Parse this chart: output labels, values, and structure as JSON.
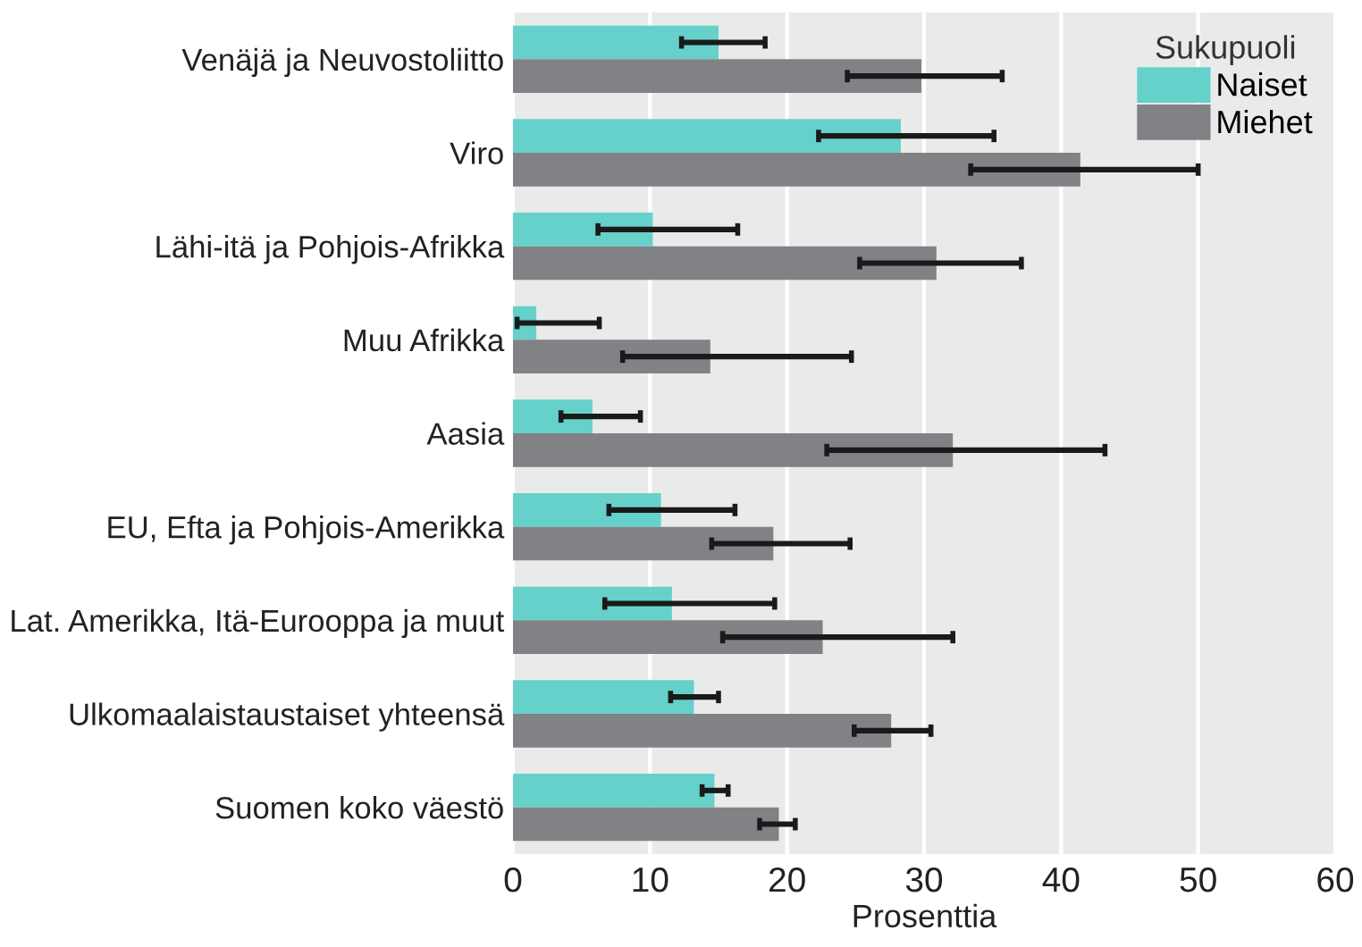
{
  "chart_data": {
    "type": "bar",
    "orientation": "horizontal",
    "xlabel": "Prosenttia",
    "legend_title": "Sukupuoli",
    "legend": "top right",
    "grid": "x",
    "categories": [
      "Venäjä ja Neuvostoliitto",
      "Viro",
      "Lähi-itä ja Pohjois-Afrikka",
      "Muu Afrikka",
      "Aasia",
      "EU, Efta ja Pohjois-Amerikka",
      "Lat. Amerikka, Itä-Eurooppa ja muut",
      "Ulkomaalaistaustaiset yhteensä",
      "Suomen koko väestö"
    ],
    "xlim": [
      0,
      60
    ],
    "xticks": [
      0,
      10,
      20,
      30,
      40,
      50,
      60
    ],
    "series": [
      {
        "name": "Naiset",
        "color": "#66d1cb",
        "values": [
          15.0,
          28.3,
          10.2,
          1.7,
          5.8,
          10.8,
          11.6,
          13.2,
          14.7
        ],
        "errors": [
          [
            12.3,
            18.4
          ],
          [
            22.3,
            35.1
          ],
          [
            6.2,
            16.4
          ],
          [
            0.3,
            6.3
          ],
          [
            3.5,
            9.3
          ],
          [
            7.0,
            16.2
          ],
          [
            6.7,
            19.1
          ],
          [
            11.5,
            15.0
          ],
          [
            13.8,
            15.7
          ]
        ]
      },
      {
        "name": "Miehet",
        "color": "#808285",
        "values": [
          29.8,
          41.4,
          30.9,
          14.4,
          32.1,
          19.0,
          22.6,
          27.6,
          19.4
        ],
        "errors": [
          [
            24.4,
            35.7
          ],
          [
            33.4,
            50.0
          ],
          [
            25.3,
            37.1
          ],
          [
            8.0,
            24.7
          ],
          [
            22.9,
            43.2
          ],
          [
            14.5,
            24.6
          ],
          [
            15.3,
            32.1
          ],
          [
            24.9,
            30.5
          ],
          [
            18.0,
            20.6
          ]
        ]
      }
    ]
  }
}
